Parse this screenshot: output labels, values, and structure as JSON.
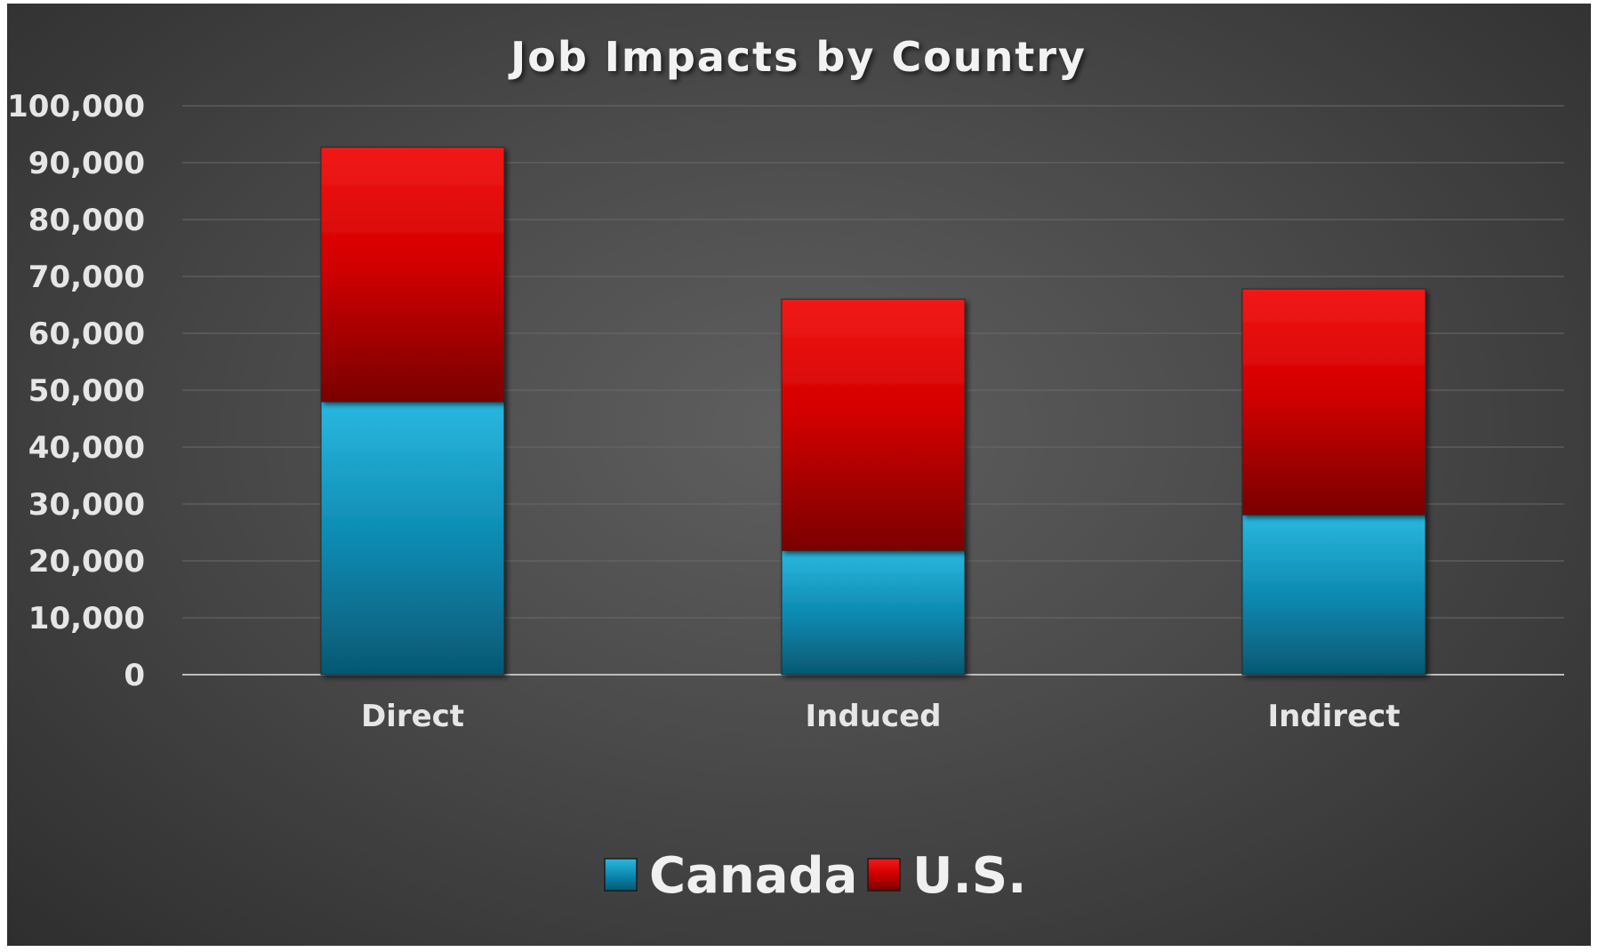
{
  "chart_data": {
    "type": "bar",
    "stacked": true,
    "title": "Job Impacts by Country",
    "categories": [
      "Direct",
      "Induced",
      "Indirect"
    ],
    "series": [
      {
        "name": "Canada",
        "values": [
          48000,
          21800,
          28100
        ],
        "color": "#1aa3cc"
      },
      {
        "name": "U.S.",
        "values": [
          44700,
          44200,
          39700
        ],
        "color": "#e00000"
      }
    ],
    "y_ticks": [
      "0",
      "10,000",
      "20,000",
      "30,000",
      "40,000",
      "50,000",
      "60,000",
      "70,000",
      "80,000",
      "90,000",
      "100,000"
    ],
    "ylim": [
      0,
      100000
    ],
    "grid": true,
    "legend_position": "bottom",
    "background": "#4a4a4a"
  }
}
